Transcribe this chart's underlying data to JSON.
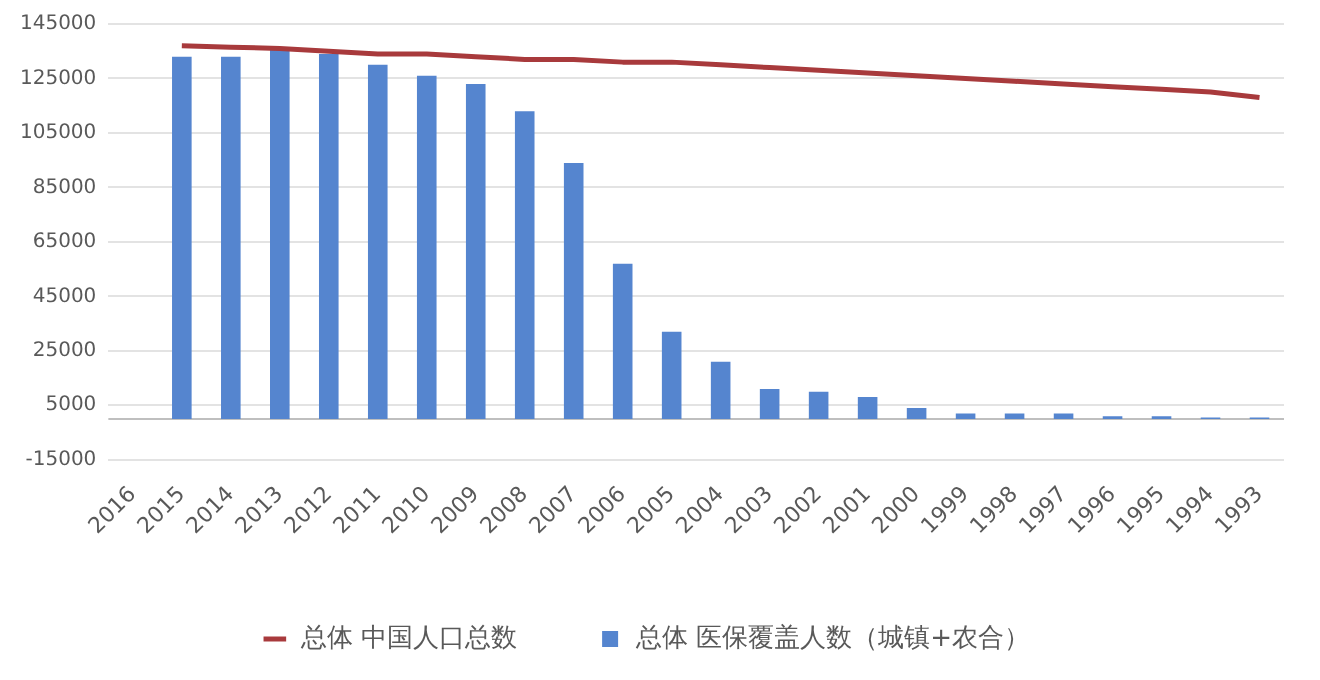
{
  "chart_data": {
    "type": "bar",
    "categories": [
      "2016",
      "2015",
      "2014",
      "2013",
      "2012",
      "2011",
      "2010",
      "2009",
      "2008",
      "2007",
      "2006",
      "2005",
      "2004",
      "2003",
      "2002",
      "2001",
      "2000",
      "1999",
      "1998",
      "1997",
      "1996",
      "1995",
      "1994",
      "1993"
    ],
    "series": [
      {
        "name": "总体 医保覆盖人数（城镇+农合）",
        "color": "#5585cf",
        "values": [
          null,
          133000,
          133000,
          136000,
          134000,
          130000,
          126000,
          123000,
          113000,
          94000,
          57000,
          32000,
          21000,
          11000,
          10000,
          8000,
          4000,
          2000,
          2000,
          2000,
          1000,
          1000,
          500,
          500
        ]
      },
      {
        "name": "总体 中国人口总数",
        "type": "line",
        "color": "#a83a3c",
        "values": [
          null,
          137000,
          136500,
          136000,
          135000,
          134000,
          134000,
          133000,
          132000,
          132000,
          131000,
          131000,
          130000,
          129000,
          128000,
          127000,
          126000,
          125000,
          124000,
          123000,
          122000,
          121000,
          120000,
          118000
        ]
      }
    ],
    "ylim": [
      -15000,
      145000
    ],
    "yticks": [
      -15000,
      5000,
      25000,
      45000,
      65000,
      85000,
      105000,
      125000,
      145000
    ],
    "grid": "y",
    "legend": "bottom",
    "marker": "none"
  }
}
